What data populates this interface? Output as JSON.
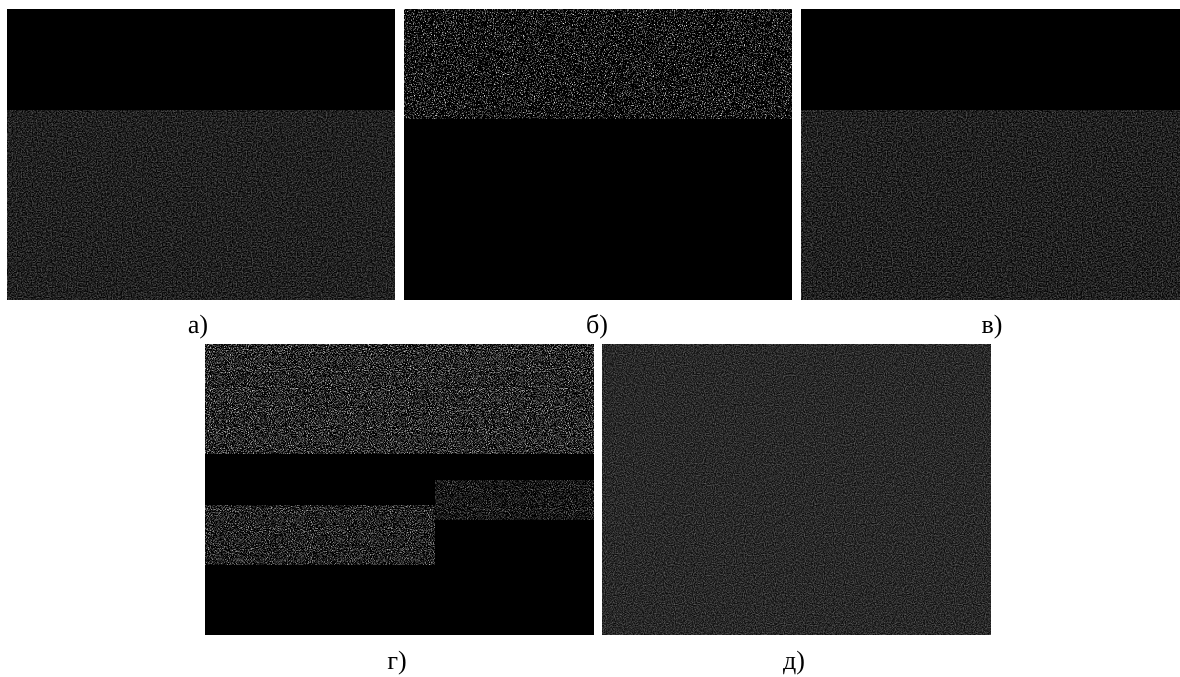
{
  "panels": [
    {
      "label": "а)"
    },
    {
      "label": "б)"
    },
    {
      "label": "в)"
    },
    {
      "label": "г)"
    },
    {
      "label": "д)"
    }
  ]
}
